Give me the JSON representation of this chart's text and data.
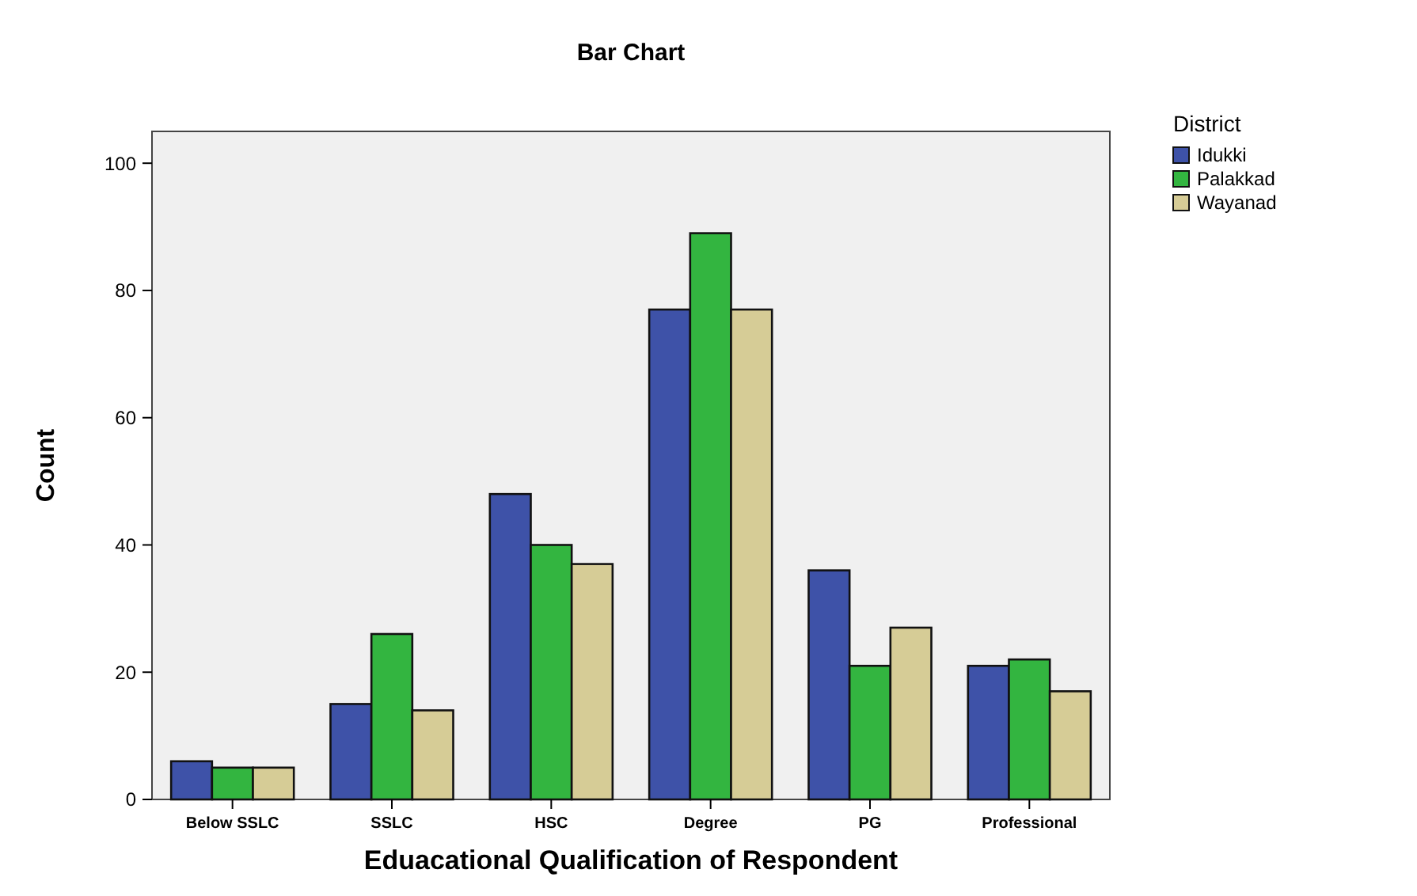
{
  "chart_data": {
    "type": "bar",
    "title": "Bar Chart",
    "xlabel": "Eduacational Qualification of Respondent",
    "ylabel": "Count",
    "legend_title": "District",
    "legend": "right",
    "categories": [
      "Below SSLC",
      "SSLC",
      "HSC",
      "Degree",
      "PG",
      "Professional"
    ],
    "series": [
      {
        "name": "Idukki",
        "color": "#3e52a8",
        "values": [
          6,
          15,
          48,
          77,
          36,
          21
        ]
      },
      {
        "name": "Palakkad",
        "color": "#33b540",
        "values": [
          5,
          26,
          40,
          89,
          21,
          22
        ]
      },
      {
        "name": "Wayanad",
        "color": "#d6cc96",
        "values": [
          5,
          14,
          37,
          77,
          27,
          17
        ]
      }
    ],
    "ylim": [
      0,
      105
    ],
    "yticks": [
      0,
      20,
      40,
      60,
      80,
      100
    ],
    "grid": false
  }
}
